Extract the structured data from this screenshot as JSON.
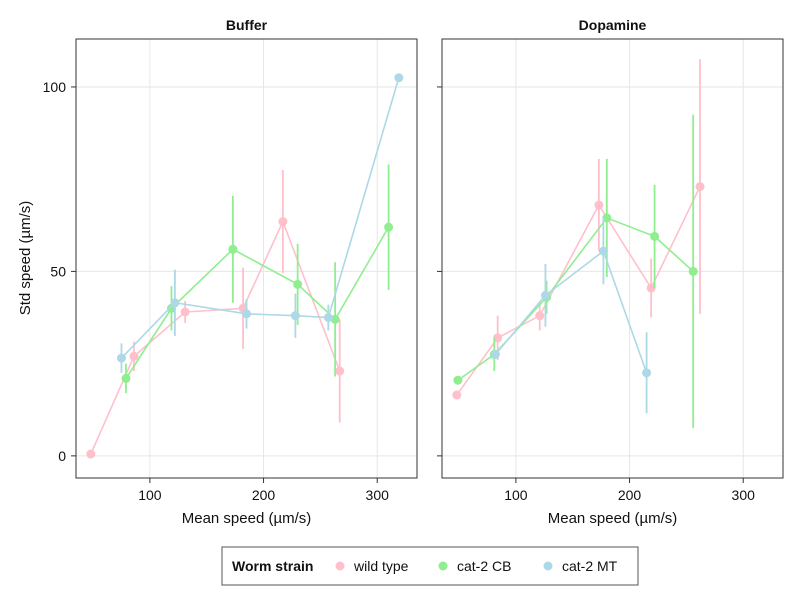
{
  "chart_data": {
    "type": "scatter",
    "ylabel": "Std speed (µm/s)",
    "xlabel": "Mean speed (µm/s)",
    "xlim": [
      35,
      335
    ],
    "ylim": [
      -6,
      113
    ],
    "x_ticks": [
      100,
      200,
      300
    ],
    "y_ticks": [
      0,
      50,
      100
    ],
    "grid": true,
    "legend": {
      "title": "Worm strain",
      "placement": "bottom",
      "entries": [
        "wild type",
        "cat-2 CB",
        "cat-2 MT"
      ]
    },
    "colors": {
      "wild type": "#ffc0cb",
      "cat-2 CB": "#90ee90",
      "cat-2 MT": "#add8e6"
    },
    "panels": [
      {
        "title": "Buffer",
        "series": [
          {
            "name": "wild type",
            "points": [
              {
                "x": 48,
                "y": 0.5,
                "err": 0
              },
              {
                "x": 86,
                "y": 27,
                "err": 4
              },
              {
                "x": 131,
                "y": 39,
                "err": 3
              },
              {
                "x": 182,
                "y": 40,
                "err": 11
              },
              {
                "x": 217,
                "y": 63.5,
                "err": 14
              },
              {
                "x": 267,
                "y": 23,
                "err": 14
              }
            ]
          },
          {
            "name": "cat-2 CB",
            "points": [
              {
                "x": 79,
                "y": 21,
                "err": 4
              },
              {
                "x": 119,
                "y": 40,
                "err": 6
              },
              {
                "x": 173,
                "y": 56,
                "err": 14.5
              },
              {
                "x": 230,
                "y": 46.5,
                "err": 11
              },
              {
                "x": 263,
                "y": 37,
                "err": 15.5
              },
              {
                "x": 310,
                "y": 62,
                "err": 17
              }
            ]
          },
          {
            "name": "cat-2 MT",
            "points": [
              {
                "x": 75,
                "y": 26.5,
                "err": 4
              },
              {
                "x": 122,
                "y": 41.5,
                "err": 9
              },
              {
                "x": 185,
                "y": 38.5,
                "err": 4
              },
              {
                "x": 228,
                "y": 38,
                "err": 6
              },
              {
                "x": 257,
                "y": 37.5,
                "err": 3.5
              },
              {
                "x": 319,
                "y": 102.5,
                "err": 0
              }
            ]
          }
        ]
      },
      {
        "title": "Dopamine",
        "series": [
          {
            "name": "wild type",
            "points": [
              {
                "x": 48,
                "y": 16.5,
                "err": 0
              },
              {
                "x": 84,
                "y": 32,
                "err": 6
              },
              {
                "x": 121,
                "y": 38,
                "err": 4
              },
              {
                "x": 173,
                "y": 68,
                "err": 12.5
              },
              {
                "x": 219,
                "y": 45.5,
                "err": 8
              },
              {
                "x": 262,
                "y": 73,
                "err": 34.5
              }
            ]
          },
          {
            "name": "cat-2 CB",
            "points": [
              {
                "x": 49,
                "y": 20.5,
                "err": 0
              },
              {
                "x": 81,
                "y": 27.5,
                "err": 4.5
              },
              {
                "x": 127,
                "y": 43,
                "err": 4.5
              },
              {
                "x": 180,
                "y": 64.5,
                "err": 16
              },
              {
                "x": 222,
                "y": 59.5,
                "err": 14
              },
              {
                "x": 256,
                "y": 50,
                "err": 42.5
              }
            ]
          },
          {
            "name": "cat-2 MT",
            "points": [
              {
                "x": 82,
                "y": 27.5,
                "err": 0
              },
              {
                "x": 126,
                "y": 43.5,
                "err": 8.5
              },
              {
                "x": 177,
                "y": 55.5,
                "err": 9
              },
              {
                "x": 215,
                "y": 22.5,
                "err": 11
              }
            ]
          }
        ]
      }
    ]
  }
}
